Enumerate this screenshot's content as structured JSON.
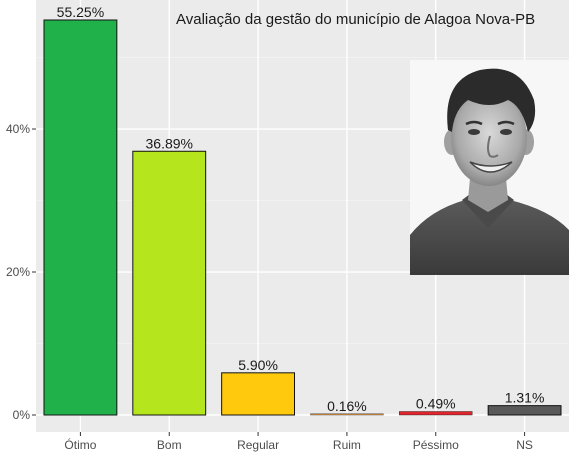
{
  "chart_data": {
    "type": "bar",
    "title": "Avaliação da gestão do município de Alagoa Nova-PB",
    "xlabel": "",
    "ylabel": "",
    "categories": [
      "Ótimo",
      "Bom",
      "Regular",
      "Ruim",
      "Péssimo",
      "NS"
    ],
    "values": [
      55.25,
      36.89,
      5.9,
      0.16,
      0.49,
      1.31
    ],
    "value_labels": [
      "55.25%",
      "36.89%",
      "5.90%",
      "0.16%",
      "0.49%",
      "1.31%"
    ],
    "colors": [
      "#21b14b",
      "#b5e61d",
      "#ffc90e",
      "#f4a24a",
      "#e0262d",
      "#595959"
    ],
    "ylim": [
      0,
      56.5
    ],
    "yticks": [
      0,
      20,
      40
    ],
    "ytick_labels": [
      "0%",
      "20%",
      "40%"
    ],
    "grid": true,
    "legend": "none",
    "background": "#ebebeb",
    "image": {
      "name": "mayor-portrait",
      "description_icon": "person-photo-icon"
    }
  }
}
